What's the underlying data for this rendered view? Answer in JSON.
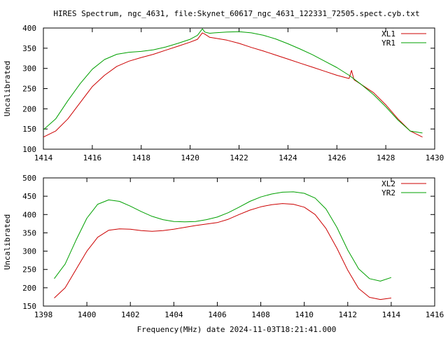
{
  "title": "HIRES Spectrum, ngc_4631, file:Skynet_60617_ngc_4631_122331_72505.spect.cyb.txt",
  "xlabel_bottom": "Frequency(MHz) date 2024-11-03T18:21:41.000",
  "chart_data": [
    {
      "type": "line",
      "ylabel": "Uncalibrated",
      "xlim": [
        1414,
        1430
      ],
      "ylim": [
        100,
        400
      ],
      "xticks": [
        1414,
        1416,
        1418,
        1420,
        1422,
        1424,
        1426,
        1428,
        1430
      ],
      "yticks": [
        100,
        150,
        200,
        250,
        300,
        350,
        400
      ],
      "legend": "top-right",
      "grid": false,
      "series": [
        {
          "name": "XL1",
          "color": "#cc0000",
          "x": [
            1414.0,
            1414.5,
            1415.0,
            1415.5,
            1416.0,
            1416.5,
            1417.0,
            1417.5,
            1418.0,
            1418.5,
            1419.0,
            1419.5,
            1420.0,
            1420.3,
            1420.5,
            1420.6,
            1420.8,
            1421.0,
            1421.5,
            1422.0,
            1422.5,
            1423.0,
            1423.5,
            1424.0,
            1424.5,
            1425.0,
            1425.5,
            1426.0,
            1426.5,
            1426.6,
            1426.7,
            1427.0,
            1427.5,
            1428.0,
            1428.5,
            1429.0,
            1429.5
          ],
          "y": [
            130,
            145,
            175,
            215,
            255,
            283,
            305,
            318,
            327,
            335,
            345,
            355,
            365,
            372,
            388,
            385,
            377,
            375,
            370,
            362,
            352,
            343,
            333,
            323,
            313,
            303,
            293,
            283,
            275,
            295,
            272,
            260,
            240,
            210,
            175,
            145,
            130
          ]
        },
        {
          "name": "YR1",
          "color": "#00a000",
          "x": [
            1414.0,
            1414.5,
            1415.0,
            1415.5,
            1416.0,
            1416.5,
            1417.0,
            1417.5,
            1418.0,
            1418.5,
            1419.0,
            1419.5,
            1420.0,
            1420.3,
            1420.5,
            1420.6,
            1420.8,
            1421.0,
            1421.5,
            1422.0,
            1422.5,
            1423.0,
            1423.5,
            1424.0,
            1424.5,
            1425.0,
            1425.5,
            1426.0,
            1426.5,
            1427.0,
            1427.5,
            1428.0,
            1428.5,
            1429.0,
            1429.5
          ],
          "y": [
            148,
            175,
            220,
            262,
            298,
            322,
            335,
            340,
            342,
            346,
            353,
            362,
            372,
            382,
            398,
            390,
            387,
            388,
            390,
            391,
            388,
            382,
            373,
            361,
            348,
            334,
            318,
            302,
            283,
            260,
            235,
            205,
            172,
            145,
            140
          ]
        }
      ]
    },
    {
      "type": "line",
      "ylabel": "Uncalibrated",
      "xlim": [
        1398,
        1416
      ],
      "ylim": [
        150,
        500
      ],
      "xticks": [
        1398,
        1400,
        1402,
        1404,
        1406,
        1408,
        1410,
        1412,
        1414,
        1416
      ],
      "yticks": [
        150,
        200,
        250,
        300,
        350,
        400,
        450,
        500
      ],
      "legend": "top-right",
      "grid": false,
      "series": [
        {
          "name": "XL2",
          "color": "#cc0000",
          "x": [
            1398.5,
            1399.0,
            1399.5,
            1400.0,
            1400.5,
            1401.0,
            1401.5,
            1402.0,
            1402.5,
            1403.0,
            1403.5,
            1404.0,
            1404.5,
            1405.0,
            1405.5,
            1406.0,
            1406.5,
            1407.0,
            1407.5,
            1408.0,
            1408.5,
            1409.0,
            1409.5,
            1410.0,
            1410.5,
            1411.0,
            1411.5,
            1412.0,
            1412.5,
            1413.0,
            1413.5,
            1414.0
          ],
          "y": [
            172,
            200,
            250,
            300,
            338,
            357,
            361,
            360,
            356,
            354,
            356,
            360,
            365,
            370,
            374,
            378,
            387,
            400,
            412,
            421,
            427,
            430,
            428,
            420,
            400,
            362,
            308,
            248,
            198,
            174,
            168,
            172
          ]
        },
        {
          "name": "YR2",
          "color": "#00a000",
          "x": [
            1398.5,
            1399.0,
            1399.5,
            1400.0,
            1400.5,
            1401.0,
            1401.5,
            1402.0,
            1402.5,
            1403.0,
            1403.5,
            1404.0,
            1404.5,
            1405.0,
            1405.5,
            1406.0,
            1406.5,
            1407.0,
            1407.5,
            1408.0,
            1408.5,
            1409.0,
            1409.5,
            1410.0,
            1410.5,
            1411.0,
            1411.5,
            1412.0,
            1412.5,
            1413.0,
            1413.5,
            1414.0
          ],
          "y": [
            225,
            265,
            330,
            390,
            428,
            440,
            436,
            423,
            408,
            395,
            386,
            381,
            380,
            381,
            386,
            393,
            405,
            420,
            436,
            448,
            456,
            461,
            462,
            458,
            445,
            415,
            365,
            303,
            252,
            225,
            218,
            228
          ]
        }
      ]
    }
  ]
}
